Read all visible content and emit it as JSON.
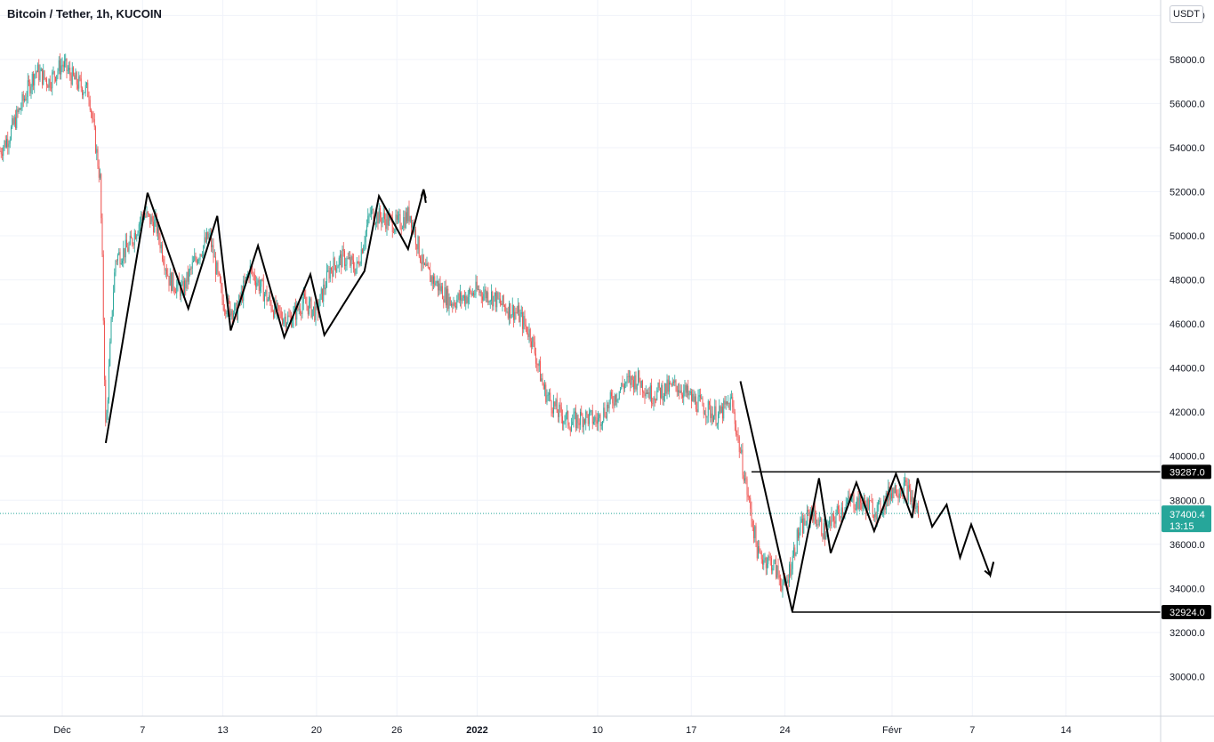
{
  "header": {
    "title": "Bitcoin / Tether, 1h, KUCOIN",
    "unit_label": "USDT"
  },
  "colors": {
    "up": "#26a69a",
    "down": "#ef5350",
    "grid": "#f0f3fa",
    "drawing": "#000000",
    "price_line": "#26a69a"
  },
  "chart_data": {
    "type": "candlestick",
    "symbol": "Bitcoin / Tether",
    "interval": "1h",
    "exchange": "KUCOIN",
    "y_axis": {
      "unit": "USDT",
      "ylim": [
        28200,
        60700
      ],
      "ticks": [
        30000,
        32000,
        34000,
        36000,
        38000,
        40000,
        42000,
        44000,
        46000,
        48000,
        50000,
        52000,
        54000,
        56000,
        58000,
        60000
      ],
      "tick_labels": [
        "30000.0",
        "32000.0",
        "34000.0",
        "36000.0",
        "38000.0",
        "40000.0",
        "42000.0",
        "44000.0",
        "46000.0",
        "48000.0",
        "50000.0",
        "52000.0",
        "54000.0",
        "56000.0",
        "58000.0",
        "60000.0"
      ]
    },
    "x_axis": {
      "tick_labels": [
        "Déc",
        "7",
        "13",
        "20",
        "26",
        "2022",
        "10",
        "17",
        "24",
        "Févr",
        "7",
        "14"
      ],
      "tick_dates": [
        "2021-12-01",
        "2021-12-07",
        "2021-12-13",
        "2021-12-20",
        "2021-12-26",
        "2022-01-01",
        "2022-01-10",
        "2022-01-17",
        "2022-01-24",
        "2022-02-01",
        "2022-02-07",
        "2022-02-14"
      ],
      "bold_ticks": [
        "2022"
      ]
    },
    "price_anchors": [
      [
        "2021-11-26",
        53500
      ],
      [
        "2021-11-27",
        54500
      ],
      [
        "2021-11-28",
        56000
      ],
      [
        "2021-11-29",
        57500
      ],
      [
        "2021-11-30",
        57000
      ],
      [
        "2021-12-01",
        57800
      ],
      [
        "2021-12-02",
        57000
      ],
      [
        "2021-12-03",
        56500
      ],
      [
        "2021-12-03T20:00",
        52500
      ],
      [
        "2021-12-04",
        48500
      ],
      [
        "2021-12-04T06:00",
        41000
      ],
      [
        "2021-12-04T18:00",
        47000
      ],
      [
        "2021-12-05",
        49000
      ],
      [
        "2021-12-06",
        49500
      ],
      [
        "2021-12-07",
        51000
      ],
      [
        "2021-12-08",
        50500
      ],
      [
        "2021-12-09",
        48000
      ],
      [
        "2021-12-10",
        47500
      ],
      [
        "2021-12-11",
        49000
      ],
      [
        "2021-12-12",
        50000
      ],
      [
        "2021-12-13",
        47000
      ],
      [
        "2021-12-14",
        46500
      ],
      [
        "2021-12-15",
        48500
      ],
      [
        "2021-12-16",
        47500
      ],
      [
        "2021-12-17",
        46500
      ],
      [
        "2021-12-18",
        46200
      ],
      [
        "2021-12-19",
        47000
      ],
      [
        "2021-12-20",
        46500
      ],
      [
        "2021-12-21",
        48500
      ],
      [
        "2021-12-22",
        49000
      ],
      [
        "2021-12-23",
        48500
      ],
      [
        "2021-12-24",
        51000
      ],
      [
        "2021-12-25",
        50800
      ],
      [
        "2021-12-26",
        50500
      ],
      [
        "2021-12-27",
        51000
      ],
      [
        "2021-12-28",
        48500
      ],
      [
        "2021-12-29",
        47800
      ],
      [
        "2021-12-30",
        47000
      ],
      [
        "2021-12-31",
        47200
      ],
      [
        "2022-01-01",
        47500
      ],
      [
        "2022-01-02",
        47300
      ],
      [
        "2022-01-03",
        46800
      ],
      [
        "2022-01-04",
        46500
      ],
      [
        "2022-01-05",
        45500
      ],
      [
        "2022-01-06",
        43000
      ],
      [
        "2022-01-07",
        42000
      ],
      [
        "2022-01-08",
        41500
      ],
      [
        "2022-01-09",
        41800
      ],
      [
        "2022-01-10",
        41600
      ],
      [
        "2022-01-11",
        42500
      ],
      [
        "2022-01-12",
        43300
      ],
      [
        "2022-01-13",
        43500
      ],
      [
        "2022-01-14",
        42800
      ],
      [
        "2022-01-15",
        43000
      ],
      [
        "2022-01-16",
        43200
      ],
      [
        "2022-01-17",
        42600
      ],
      [
        "2022-01-18",
        42200
      ],
      [
        "2022-01-19",
        41800
      ],
      [
        "2022-01-20",
        42500
      ],
      [
        "2022-01-21",
        39000
      ],
      [
        "2022-01-22",
        35500
      ],
      [
        "2022-01-23",
        35200
      ],
      [
        "2022-01-24",
        34000
      ],
      [
        "2022-01-25",
        36500
      ],
      [
        "2022-01-26",
        37500
      ],
      [
        "2022-01-27",
        36500
      ],
      [
        "2022-01-28",
        37500
      ],
      [
        "2022-01-29",
        38000
      ],
      [
        "2022-01-30",
        37800
      ],
      [
        "2022-01-31",
        37500
      ],
      [
        "2022-02-01",
        38500
      ],
      [
        "2022-02-02",
        38600
      ],
      [
        "2022-02-03",
        37400
      ]
    ],
    "horizontal_levels": [
      {
        "value": 39287.0,
        "label": "39287.0"
      },
      {
        "value": 32924.0,
        "label": "32924.0"
      }
    ],
    "last_price": {
      "value": 37400.4,
      "label": "37400.4",
      "countdown": "13:15"
    },
    "drawings": [
      {
        "name": "wave-path-1",
        "points": [
          [
            "2021-12-04T06:00",
            40600
          ],
          [
            "2021-12-07T09:00",
            51950
          ],
          [
            "2021-12-10T10:00",
            46700
          ],
          [
            "2021-12-12T14:00",
            50900
          ],
          [
            "2021-12-13T14:00",
            45700
          ],
          [
            "2021-12-15T15:00",
            49550
          ],
          [
            "2021-12-17T14:00",
            45400
          ],
          [
            "2021-12-19T13:00",
            48250
          ],
          [
            "2021-12-20T14:00",
            45500
          ],
          [
            "2021-12-23T14:00",
            48400
          ],
          [
            "2021-12-24T16:00",
            51800
          ],
          [
            "2021-12-26T20:00",
            49400
          ],
          [
            "2021-12-28T00:00",
            52100
          ],
          [
            "2021-12-28T04:00",
            51700
          ]
        ]
      },
      {
        "name": "wave-path-2",
        "points": [
          [
            "2022-01-20T16:00",
            43400
          ],
          [
            "2022-01-24T13:00",
            32950
          ],
          [
            "2022-01-26T13:00",
            39000
          ],
          [
            "2022-01-27T10:00",
            35600
          ],
          [
            "2022-01-29T08:00",
            38800
          ],
          [
            "2022-01-30T16:00",
            36600
          ],
          [
            "2022-02-01T07:00",
            39200
          ],
          [
            "2022-02-02T12:00",
            37200
          ],
          [
            "2022-02-02T22:00",
            39000
          ],
          [
            "2022-02-04T00:00",
            36800
          ],
          [
            "2022-02-05T02:00",
            37800
          ],
          [
            "2022-02-06T02:00",
            35400
          ],
          [
            "2022-02-06T22:00",
            36900
          ],
          [
            "2022-02-08T08:00",
            34600
          ],
          [
            "2022-02-08T14:00",
            35200
          ]
        ]
      },
      {
        "name": "arrow-head-top",
        "points": [
          [
            "2021-12-27T20:00",
            51800
          ],
          [
            "2021-12-28T00:00",
            52100
          ],
          [
            "2021-12-28T04:00",
            51500
          ]
        ]
      },
      {
        "name": "arrow-head-bottom",
        "points": [
          [
            "2022-02-07T22:00",
            34800
          ],
          [
            "2022-02-08T08:00",
            34600
          ],
          [
            "2022-02-08T14:00",
            35200
          ]
        ]
      }
    ]
  }
}
